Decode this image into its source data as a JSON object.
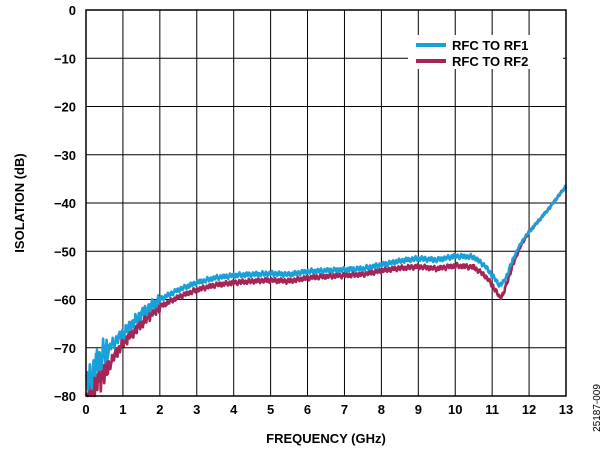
{
  "chart_data": {
    "type": "line",
    "title": "",
    "xlabel": "FREQUENCY (GHz)",
    "ylabel": "ISOLATION (dB)",
    "xlim": [
      0,
      13
    ],
    "ylim": [
      -80,
      0
    ],
    "x_ticks": [
      0,
      1,
      2,
      3,
      4,
      5,
      6,
      7,
      8,
      9,
      10,
      11,
      12,
      13
    ],
    "y_ticks": [
      0,
      -10,
      -20,
      -30,
      -40,
      -50,
      -60,
      -70,
      -80
    ],
    "y_tick_labels": [
      "0",
      "−10",
      "−20",
      "−30",
      "−40",
      "−50",
      "−60",
      "−70",
      "−80"
    ],
    "grid": true,
    "legend_position": "top-right",
    "figure_id": "25187-009",
    "series": [
      {
        "name": "RFC TO RF1",
        "color": "#1aa0d8",
        "x": [
          0.01,
          0.1,
          0.2,
          0.3,
          0.4,
          0.5,
          0.75,
          1.0,
          1.25,
          1.5,
          1.75,
          2.0,
          2.5,
          3.0,
          3.5,
          4.0,
          4.5,
          5.0,
          5.5,
          6.0,
          6.5,
          7.0,
          7.5,
          8.0,
          8.5,
          9.0,
          9.5,
          10.0,
          10.5,
          10.8,
          11.0,
          11.2,
          11.3,
          11.4,
          11.6,
          11.8,
          12.0,
          12.5,
          13.0
        ],
        "y": [
          -78,
          -76,
          -75,
          -73,
          -72,
          -71,
          -69,
          -67,
          -65,
          -63,
          -61.5,
          -60,
          -58,
          -56.5,
          -55.5,
          -55,
          -54.8,
          -54.6,
          -54.8,
          -54.2,
          -54.0,
          -53.8,
          -53.6,
          -52.8,
          -52.0,
          -51.5,
          -51.8,
          -51.0,
          -51.2,
          -53.0,
          -55.0,
          -57.0,
          -56.5,
          -55.0,
          -51.0,
          -48.0,
          -46.0,
          -41.5,
          -36.5
        ]
      },
      {
        "name": "RFC TO RF2",
        "color": "#a52556",
        "x": [
          0.01,
          0.1,
          0.2,
          0.3,
          0.4,
          0.5,
          0.75,
          1.0,
          1.25,
          1.5,
          1.75,
          2.0,
          2.5,
          3.0,
          3.5,
          4.0,
          4.5,
          5.0,
          5.5,
          6.0,
          6.5,
          7.0,
          7.5,
          8.0,
          8.5,
          9.0,
          9.5,
          10.0,
          10.5,
          10.8,
          11.0,
          11.2,
          11.3,
          11.4,
          11.6,
          11.8,
          12.0,
          12.5,
          13.0
        ],
        "y": [
          -80,
          -79,
          -78,
          -77,
          -76,
          -75,
          -72,
          -69,
          -67,
          -65,
          -63,
          -61.5,
          -59.5,
          -58,
          -57,
          -56.5,
          -56.2,
          -56.0,
          -56.2,
          -55.5,
          -55.2,
          -55.0,
          -54.8,
          -54.0,
          -53.5,
          -53.2,
          -53.6,
          -53.0,
          -53.3,
          -55.0,
          -57.0,
          -59.5,
          -59.0,
          -56.5,
          -52.0,
          -48.5,
          -46.0,
          -41.5,
          -36.5
        ]
      }
    ]
  }
}
